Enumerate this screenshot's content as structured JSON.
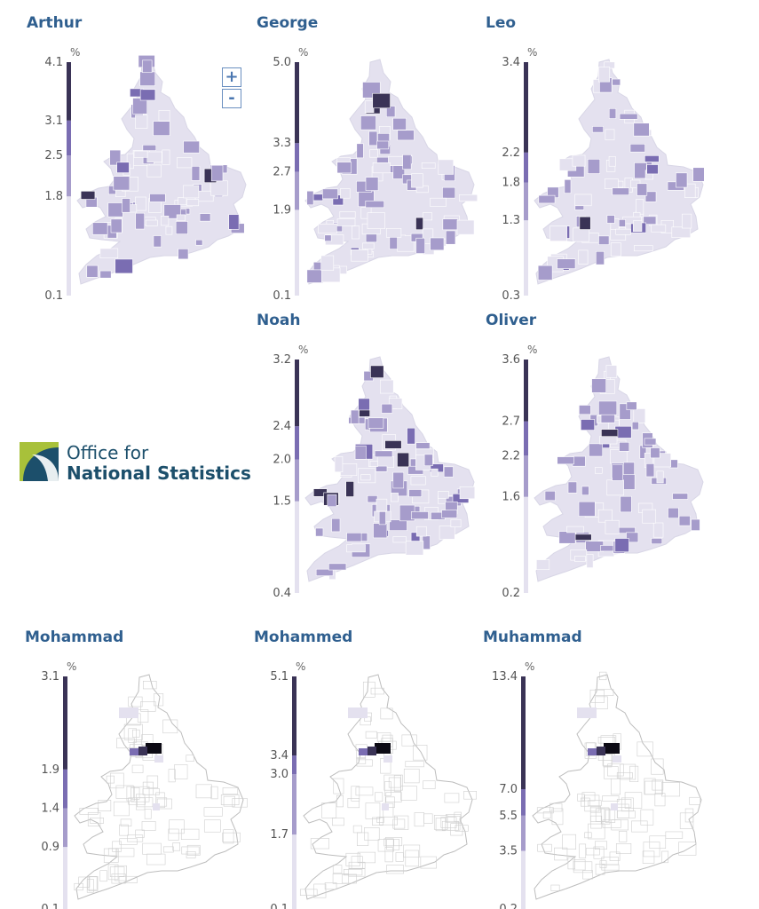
{
  "colors": {
    "title": "#2f5f8f",
    "scale": [
      "#e4e1ef",
      "#a69ccb",
      "#7a6db2",
      "#3a3356"
    ],
    "black": "#0c0a14",
    "outline": "#c9c9c9"
  },
  "zoom": {
    "plus": "+",
    "minus": "-"
  },
  "logo": {
    "line1": "Office for",
    "line2": "National Statistics",
    "icon": "ons-logo-icon"
  },
  "panels": [
    {
      "name": "Arthur",
      "unit": "%",
      "ticks": [
        "4.1",
        "3.1",
        "2.5",
        "1.8",
        "0.1"
      ],
      "values": [
        4.1,
        3.1,
        2.5,
        1.8,
        0.1
      ],
      "max": 4.1,
      "min": 0.1
    },
    {
      "name": "George",
      "unit": "%",
      "ticks": [
        "5.0",
        "3.3",
        "2.7",
        "1.9",
        "0.1"
      ],
      "values": [
        5.0,
        3.3,
        2.7,
        1.9,
        0.1
      ],
      "max": 5.0,
      "min": 0.1
    },
    {
      "name": "Leo",
      "unit": "%",
      "ticks": [
        "3.4",
        "2.2",
        "1.8",
        "1.3",
        "0.3"
      ],
      "values": [
        3.4,
        2.2,
        1.8,
        1.3,
        0.3
      ],
      "max": 3.4,
      "min": 0.3
    },
    {
      "name": "Noah",
      "unit": "%",
      "ticks": [
        "3.2",
        "2.4",
        "2.0",
        "1.5",
        "0.4"
      ],
      "values": [
        3.2,
        2.4,
        2.0,
        1.5,
        0.4
      ],
      "max": 3.2,
      "min": 0.4
    },
    {
      "name": "Oliver",
      "unit": "%",
      "ticks": [
        "3.6",
        "2.7",
        "2.2",
        "1.6",
        "0.2"
      ],
      "values": [
        3.6,
        2.7,
        2.2,
        1.6,
        0.2
      ],
      "max": 3.6,
      "min": 0.2
    },
    {
      "name": "Mohammad",
      "unit": "%",
      "ticks": [
        "3.1",
        "1.9",
        "1.4",
        "0.9",
        "0.1"
      ],
      "values": [
        3.1,
        1.9,
        1.4,
        0.9,
        0.1
      ],
      "max": 3.1,
      "min": 0.1
    },
    {
      "name": "Mohammed",
      "unit": "%",
      "ticks": [
        "5.1",
        "3.4",
        "3.0",
        "1.7",
        "0.1"
      ],
      "values": [
        5.1,
        3.4,
        3.0,
        1.7,
        0.1
      ],
      "max": 5.1,
      "min": 0.1
    },
    {
      "name": "Muhammad",
      "unit": "%",
      "ticks": [
        "13.4",
        "7.0",
        "5.5",
        "3.5",
        "0.2"
      ],
      "values": [
        13.4,
        7.0,
        5.5,
        3.5,
        0.2
      ],
      "max": 13.4,
      "min": 0.2
    }
  ]
}
